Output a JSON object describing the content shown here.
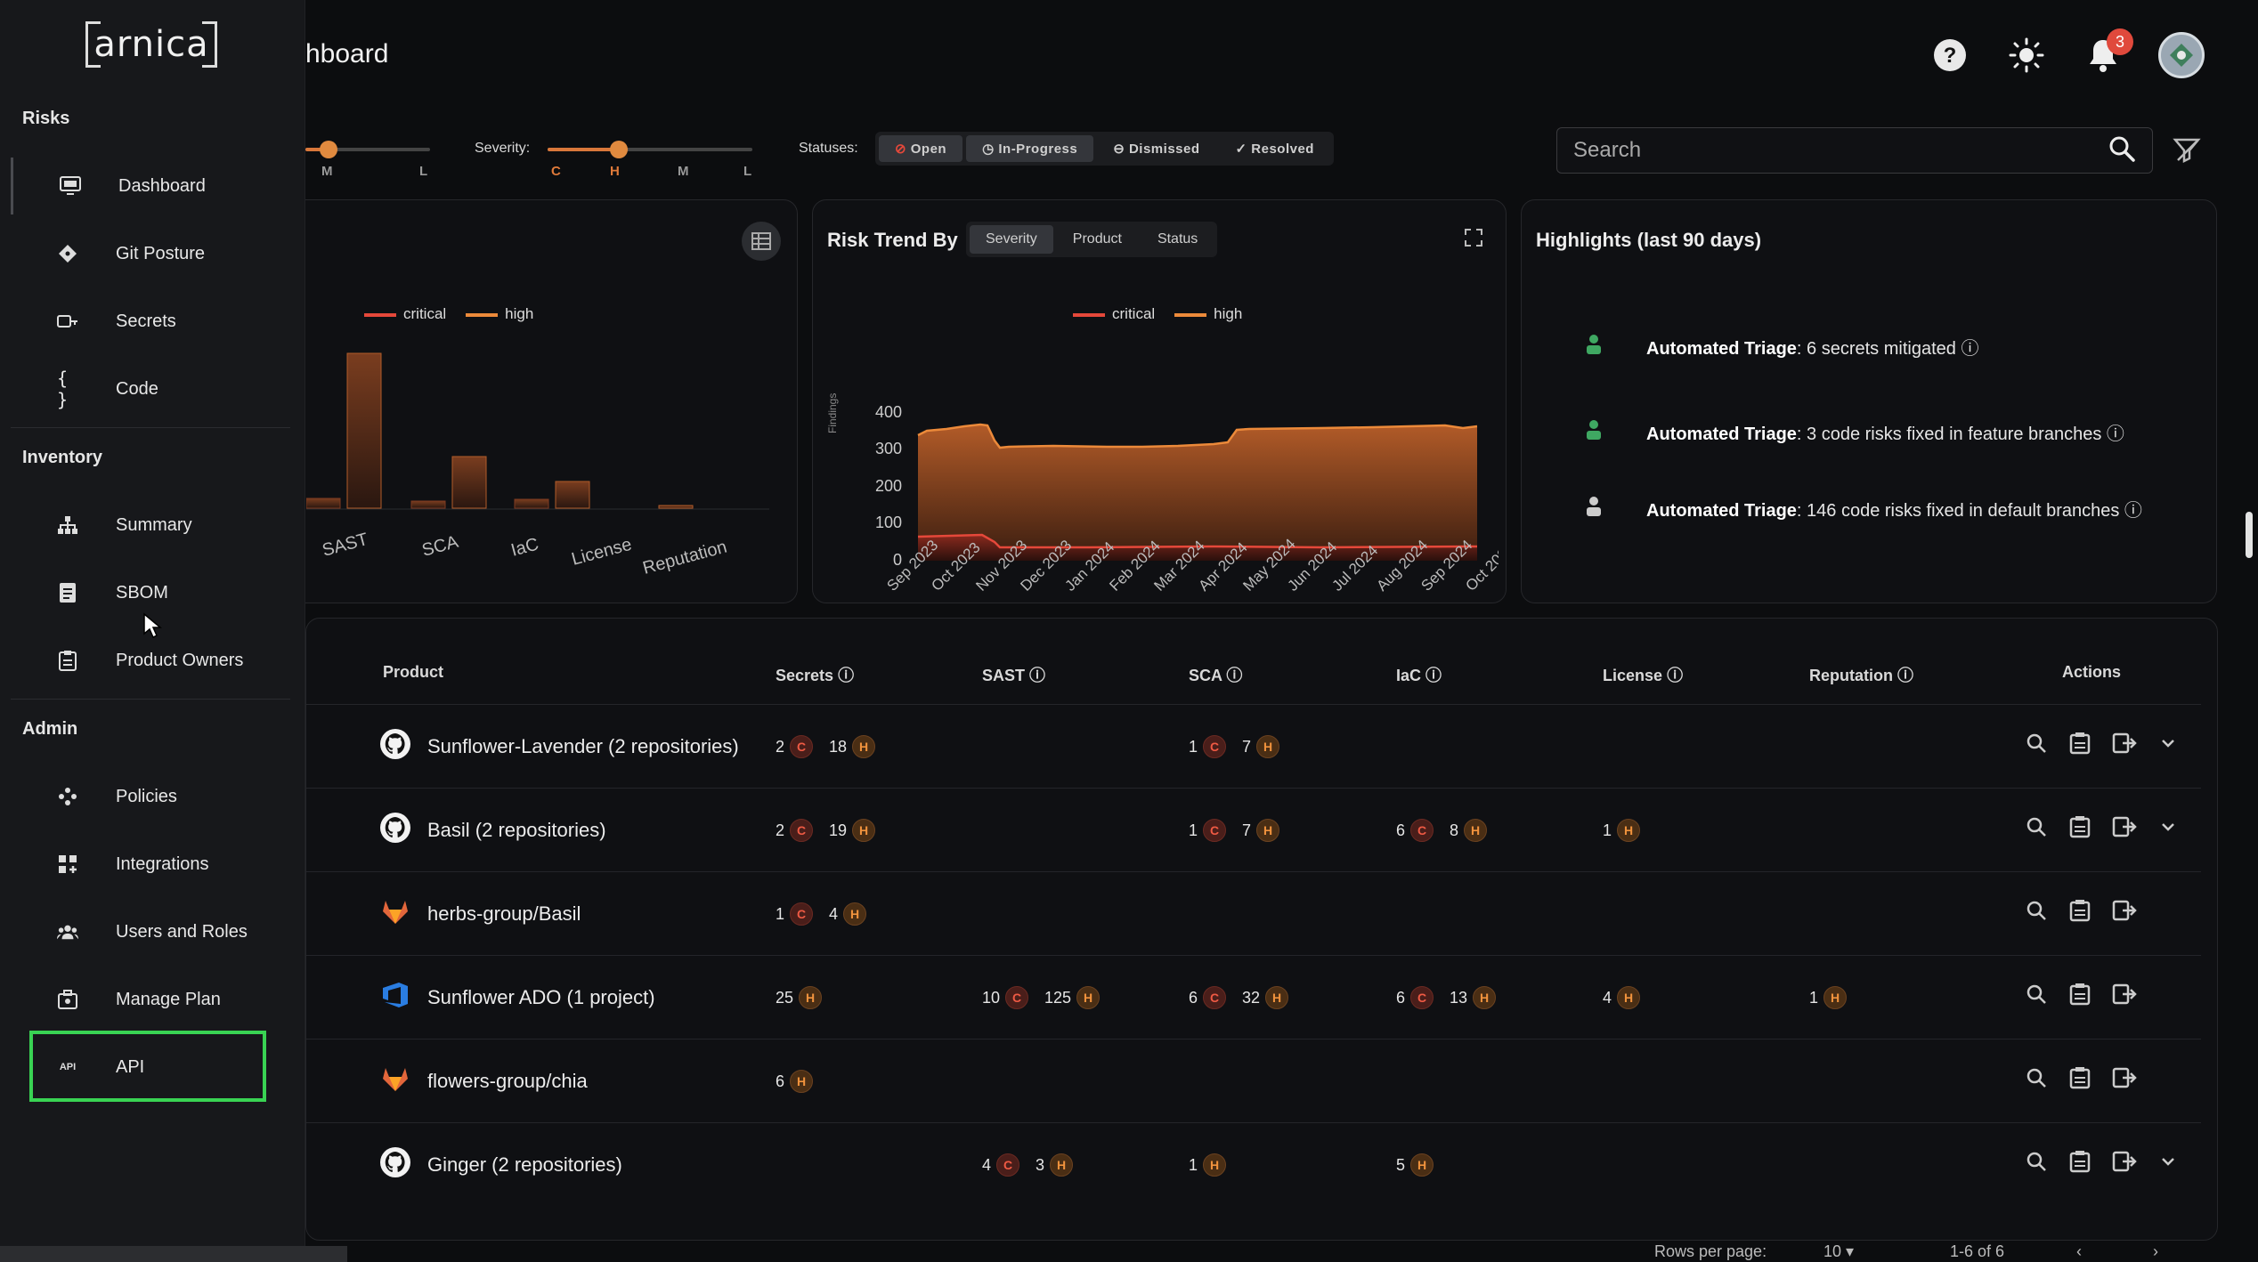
{
  "header": {
    "title": "hboard"
  },
  "notifications": {
    "count": "3"
  },
  "filters": {
    "left_ticks": [
      "M",
      "L"
    ],
    "severity_label": "Severity:",
    "severity_ticks": [
      "C",
      "H",
      "M",
      "L"
    ],
    "statuses_label": "Statuses:",
    "statuses": [
      "Open",
      "In-Progress",
      "Dismissed",
      "Resolved"
    ]
  },
  "search": {
    "placeholder": "Search"
  },
  "left_panel": {
    "legend": [
      "critical",
      "high"
    ],
    "categories": [
      "SAST",
      "SCA",
      "IaC",
      "License",
      "Reputation"
    ]
  },
  "trend_panel": {
    "title": "Risk Trend By",
    "tabs": [
      "Severity",
      "Product",
      "Status"
    ],
    "legend": [
      "critical",
      "high"
    ],
    "ylabel": "Findings"
  },
  "highlights": {
    "title": "Highlights (last 90 days)",
    "items": [
      {
        "bold": "Automated Triage",
        "text": ": 6 secrets mitigated"
      },
      {
        "bold": "Automated Triage",
        "text": ": 3 code risks fixed in feature branches"
      },
      {
        "bold": "Automated Triage",
        "text": ": 146 code risks fixed in default branches"
      }
    ]
  },
  "table": {
    "headers": [
      "Product",
      "Secrets",
      "SAST",
      "SCA",
      "IaC",
      "License",
      "Reputation",
      "Actions"
    ],
    "rows": [
      {
        "name": "Sunflower-Lavender (2 repositories)",
        "icon": "github-icon",
        "secrets": [
          [
            "2",
            "C"
          ],
          [
            "18",
            "H"
          ]
        ],
        "sast": [],
        "sca": [
          [
            "1",
            "C"
          ],
          [
            "7",
            "H"
          ]
        ],
        "iac": [],
        "license": [],
        "reputation": [],
        "expand": true
      },
      {
        "name": "Basil (2 repositories)",
        "icon": "github-icon",
        "secrets": [
          [
            "2",
            "C"
          ],
          [
            "19",
            "H"
          ]
        ],
        "sast": [],
        "sca": [
          [
            "1",
            "C"
          ],
          [
            "7",
            "H"
          ]
        ],
        "iac": [
          [
            "6",
            "C"
          ],
          [
            "8",
            "H"
          ]
        ],
        "license": [
          [
            "1",
            "H"
          ]
        ],
        "reputation": [],
        "expand": true
      },
      {
        "name": "herbs-group/Basil",
        "icon": "gitlab-icon",
        "secrets": [
          [
            "1",
            "C"
          ],
          [
            "4",
            "H"
          ]
        ],
        "sast": [],
        "sca": [],
        "iac": [],
        "license": [],
        "reputation": [],
        "expand": false
      },
      {
        "name": "Sunflower ADO (1 project)",
        "icon": "azure-devops-icon",
        "secrets": [
          [
            "25",
            "H"
          ]
        ],
        "sast": [
          [
            "10",
            "C"
          ],
          [
            "125",
            "H"
          ]
        ],
        "sca": [
          [
            "6",
            "C"
          ],
          [
            "32",
            "H"
          ]
        ],
        "iac": [
          [
            "6",
            "C"
          ],
          [
            "13",
            "H"
          ]
        ],
        "license": [
          [
            "4",
            "H"
          ]
        ],
        "reputation": [
          [
            "1",
            "H"
          ]
        ],
        "expand": false
      },
      {
        "name": "flowers-group/chia",
        "icon": "gitlab-icon",
        "secrets": [
          [
            "6",
            "H"
          ]
        ],
        "sast": [],
        "sca": [],
        "iac": [],
        "license": [],
        "reputation": [],
        "expand": false
      },
      {
        "name": "Ginger (2 repositories)",
        "icon": "github-icon",
        "secrets": [],
        "sast": [
          [
            "4",
            "C"
          ],
          [
            "3",
            "H"
          ]
        ],
        "sca": [
          [
            "1",
            "H"
          ]
        ],
        "iac": [
          [
            "5",
            "H"
          ]
        ],
        "license": [],
        "reputation": [],
        "expand": true
      }
    ],
    "rows_per_page_label": "Rows per page:",
    "rows_per_page": "10",
    "range": "1-6 of 6"
  },
  "sidebar": {
    "logo": "arnica",
    "sections": [
      {
        "title": "Risks",
        "items": [
          "Dashboard",
          "Git Posture",
          "Secrets",
          "Code"
        ]
      },
      {
        "title": "Inventory",
        "items": [
          "Summary",
          "SBOM",
          "Product Owners"
        ]
      },
      {
        "title": "Admin",
        "items": [
          "Policies",
          "Integrations",
          "Users and Roles",
          "Manage Plan",
          "API"
        ]
      }
    ]
  },
  "colors": {
    "critical": "#e5483a",
    "high": "#ec8a3a",
    "highlight_box": "#39d353"
  }
}
